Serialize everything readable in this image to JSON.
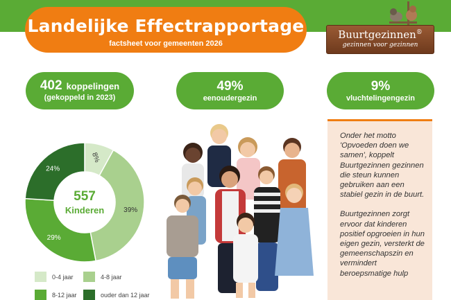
{
  "header": {
    "title": "Landelijke Effectrapportage",
    "subtitle": "factsheet voor gemeenten 2026"
  },
  "logo": {
    "name": "Buurtgezinnen",
    "mark": "®",
    "tagline": "gezinnen voor gezinnen"
  },
  "stats": {
    "couplings_number": "402",
    "couplings_label": "koppelingen",
    "couplings_note": "(gekoppeld in 2023)",
    "single_parent_value": "49%",
    "single_parent_label": "eenoudergezin",
    "refugee_value": "9%",
    "refugee_label": "vluchtelingengezin"
  },
  "chart_data": {
    "type": "pie",
    "center_value": "557",
    "center_label": "Kinderen",
    "categories": [
      "0-4 jaar",
      "4-8 jaar",
      "8-12 jaar",
      "ouder dan 12 jaar"
    ],
    "values": [
      8,
      39,
      29,
      24
    ],
    "labels": [
      "8%",
      "39%",
      "29%",
      "24%"
    ],
    "colors": [
      "#d5e9c8",
      "#a9d08e",
      "#5aab35",
      "#2c6e2a"
    ]
  },
  "sidebar": {
    "paragraph1": "Onder het motto 'Opvoeden doen we samen', koppelt Buurtgezinnen gezinnen die steun kunnen gebruiken aan een stabiel gezin in de buurt.",
    "paragraph2": "Buurtgezinnen zorgt ervoor dat kinderen positief opgroeien in hun eigen gezin, versterkt de gemeenschapszin en vermindert beroepsmatige hulp"
  },
  "colors": {
    "green": "#5aab35",
    "orange": "#f07d12",
    "brown": "#7a4223",
    "cream": "#f9e6d8"
  }
}
